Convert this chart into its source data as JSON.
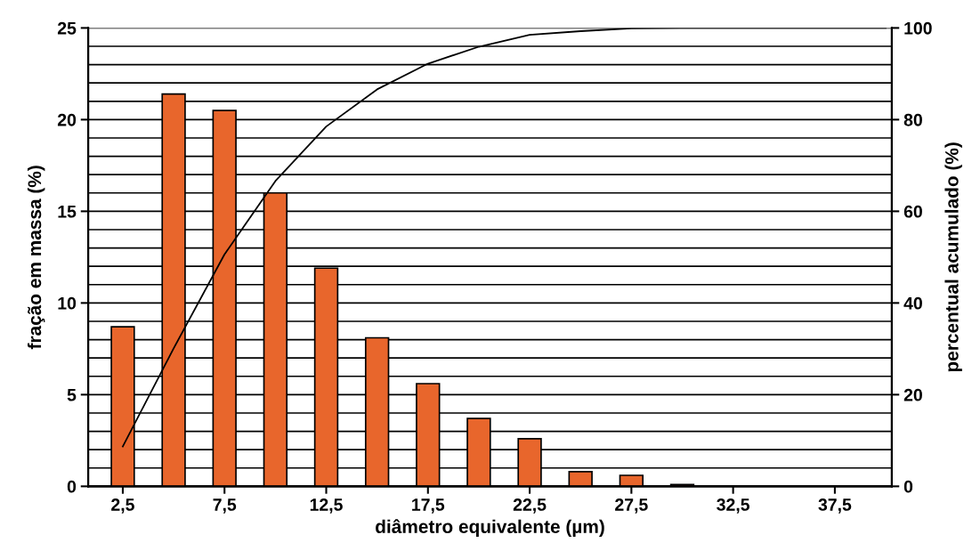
{
  "chart_data": {
    "type": "bar",
    "xlabel": "diâmetro equivalente (µm)",
    "ylabel": "fração em massa (%)",
    "y2label": "percentual acumulado (%)",
    "xlim": [
      0.8,
      40.3
    ],
    "xticks": [
      {
        "value": 2.5,
        "label": "2,5"
      },
      {
        "value": 7.5,
        "label": "7,5"
      },
      {
        "value": 12.5,
        "label": "12,5"
      },
      {
        "value": 17.5,
        "label": "17,5"
      },
      {
        "value": 22.5,
        "label": "22,5"
      },
      {
        "value": 27.5,
        "label": "27,5"
      },
      {
        "value": 32.5,
        "label": "32,5"
      },
      {
        "value": 37.5,
        "label": "37,5"
      }
    ],
    "ylim": [
      0,
      25
    ],
    "yticks": [
      0,
      {
        "value": 1,
        "label": null
      },
      {
        "value": 2,
        "label": null
      },
      {
        "value": 3,
        "label": null
      },
      {
        "value": 4,
        "label": null
      },
      5,
      {
        "value": 6,
        "label": null
      },
      {
        "value": 7,
        "label": null
      },
      {
        "value": 8,
        "label": null
      },
      {
        "value": 9,
        "label": null
      },
      10,
      {
        "value": 11,
        "label": null
      },
      {
        "value": 12,
        "label": null
      },
      {
        "value": 13,
        "label": null
      },
      {
        "value": 14,
        "label": null
      },
      15,
      {
        "value": 16,
        "label": null
      },
      {
        "value": 17,
        "label": null
      },
      {
        "value": 18,
        "label": null
      },
      {
        "value": 19,
        "label": null
      },
      20,
      {
        "value": 21,
        "label": null
      },
      {
        "value": 22,
        "label": null
      },
      {
        "value": 23,
        "label": null
      },
      {
        "value": 24,
        "label": null
      },
      25
    ],
    "y2lim": [
      0,
      100
    ],
    "y2ticks": [
      0,
      20,
      40,
      60,
      80,
      100
    ],
    "grid": "y",
    "series": [
      {
        "color": "#e8662c",
        "x": [
          2.5,
          5,
          7.5,
          10,
          12.5,
          15,
          17.5,
          20,
          22.5,
          25,
          27.5,
          30
        ],
        "values": [
          8.7,
          21.4,
          20.5,
          16.0,
          11.9,
          8.1,
          5.6,
          3.7,
          2.6,
          0.8,
          0.6,
          0.1
        ]
      },
      {
        "type": "line",
        "axis": "y2",
        "color": "#000000",
        "x": [
          2.5,
          5,
          7.5,
          10,
          12.5,
          15,
          17.5,
          20,
          22.5,
          25,
          27.5,
          30,
          32.5,
          35,
          37.5,
          40
        ],
        "values": [
          8.7,
          30.1,
          50.6,
          66.6,
          78.5,
          86.6,
          92.2,
          95.9,
          98.5,
          99.3,
          99.9,
          100,
          100,
          100,
          100,
          100
        ]
      }
    ]
  }
}
